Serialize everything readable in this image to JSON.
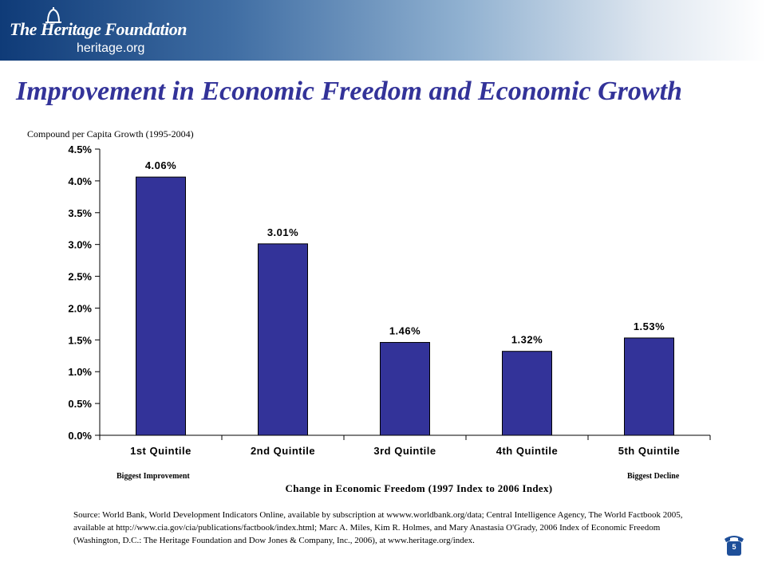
{
  "header": {
    "org_name": "The Heritage Foundation",
    "site": "heritage.org",
    "brand_color": "#0f3b78"
  },
  "title": "Improvement in Economic Freedom and Economic Growth",
  "annotations": {
    "left": "Biggest Improvement",
    "right": "Biggest Decline"
  },
  "source": "Source: World Bank, World Development Indicators Online, available by subscription at wwww.worldbank.org/data; Central Intelligence Agency, The World Factbook 2005, available at http://www.cia.gov/cia/publications/factbook/index.html; Marc A. Miles, Kim R. Holmes, and Mary Anastasia O'Grady, 2006 Index of Economic Freedom (Washington, D.C.: The Heritage Foundation and Dow Jones & Company, Inc., 2006), at www.heritage.org/index.",
  "page_number": "5",
  "chart_data": {
    "type": "bar",
    "categories": [
      "1st Quintile",
      "2nd Quintile",
      "3rd Quintile",
      "4th Quintile",
      "5th Quintile"
    ],
    "values": [
      4.06,
      3.01,
      1.46,
      1.32,
      1.53
    ],
    "value_labels": [
      "4.06%",
      "3.01%",
      "1.46%",
      "1.32%",
      "1.53%"
    ],
    "title": "",
    "xlabel": "Change in Economic Freedom (1997 Index to 2006 Index)",
    "ylabel": "Compound per Capita Growth (1995-2004)",
    "ylim": [
      0,
      4.5
    ],
    "yticks": [
      0,
      0.5,
      1.0,
      1.5,
      2.0,
      2.5,
      3.0,
      3.5,
      4.0,
      4.5
    ],
    "ytick_labels": [
      "0.0%",
      "0.5%",
      "1.0%",
      "1.5%",
      "2.0%",
      "2.5%",
      "3.0%",
      "3.5%",
      "4.0%",
      "4.5%"
    ],
    "bar_color": "#333399",
    "grid": false,
    "legend": "none"
  }
}
